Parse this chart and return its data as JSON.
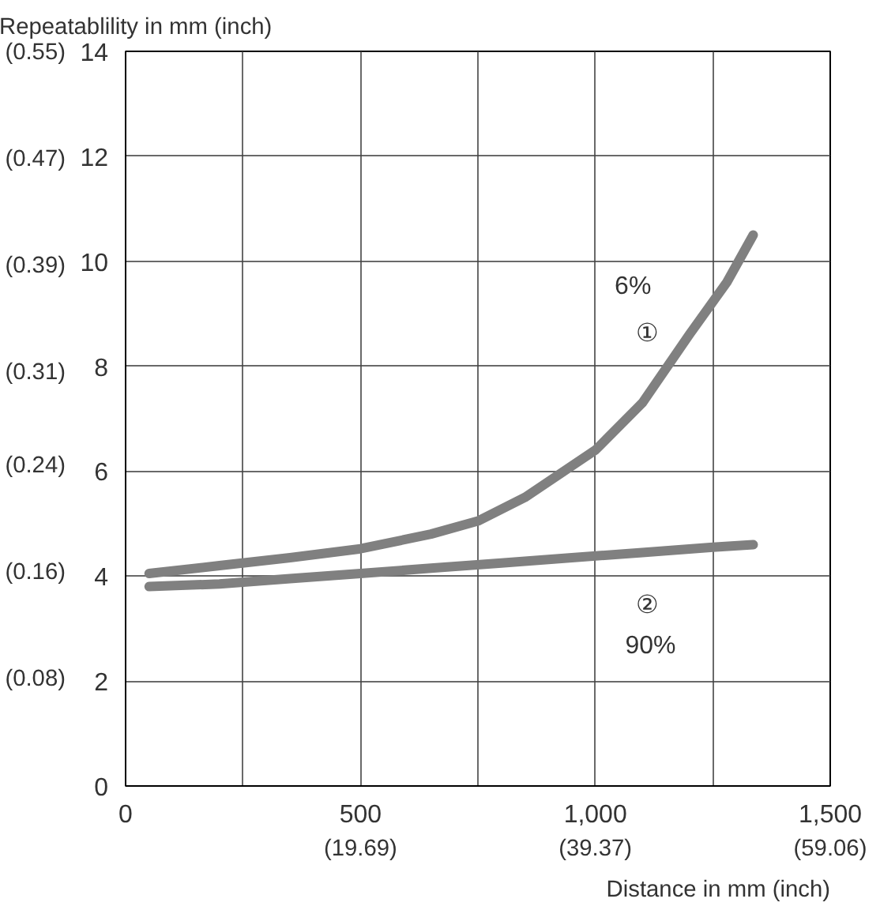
{
  "chart_data": {
    "type": "line",
    "xlabel": "Distance in mm (inch)",
    "ylabel": "Repeatablility in mm (inch)",
    "xlim": [
      0,
      1500
    ],
    "ylim": [
      0,
      14
    ],
    "xticks": [
      0,
      {
        "value": 250,
        "label": null
      },
      500,
      {
        "value": 750,
        "label": null
      },
      {
        "value": 1000,
        "label": "1,000"
      },
      {
        "value": 1250,
        "label": null
      },
      {
        "value": 1500,
        "label": "1,500"
      }
    ],
    "yticks": [
      0,
      2,
      4,
      6,
      8,
      10,
      12,
      14
    ],
    "x2lim": [
      0,
      59.06
    ],
    "x2ticks": [
      {
        "value": 19.69,
        "label": "(19.69)"
      },
      {
        "value": 39.37,
        "label": "(39.37)"
      },
      {
        "value": 59.06,
        "label": "(59.06)"
      }
    ],
    "y2lim": [
      0,
      0.551
    ],
    "y2ticks": [
      {
        "value": 0.08,
        "label": "(0.08)"
      },
      {
        "value": 0.16,
        "label": "(0.16)"
      },
      {
        "value": 0.24,
        "label": "(0.24)"
      },
      {
        "value": 0.31,
        "label": "(0.31)"
      },
      {
        "value": 0.39,
        "label": "(0.39)"
      },
      {
        "value": 0.47,
        "label": "(0.47)"
      },
      {
        "value": 0.55,
        "label": "(0.55)"
      }
    ],
    "grid": true,
    "marker": "none",
    "line_style": "solid",
    "series": [
      {
        "color": "#808080",
        "x": [
          50,
          200,
          350,
          500,
          650,
          750,
          850,
          950,
          1000,
          1100,
          1200,
          1280,
          1336
        ],
        "values": [
          4.05,
          4.2,
          4.35,
          4.52,
          4.8,
          5.05,
          5.5,
          6.1,
          6.4,
          7.3,
          8.6,
          9.6,
          10.5
        ]
      },
      {
        "color": "#808080",
        "x": [
          50,
          200,
          350,
          500,
          650,
          800,
          950,
          1100,
          1250,
          1336
        ],
        "values": [
          3.8,
          3.85,
          3.95,
          4.05,
          4.15,
          4.25,
          4.35,
          4.45,
          4.55,
          4.6
        ]
      }
    ],
    "annotations": [
      "6%",
      "①",
      "②",
      "90%"
    ]
  }
}
